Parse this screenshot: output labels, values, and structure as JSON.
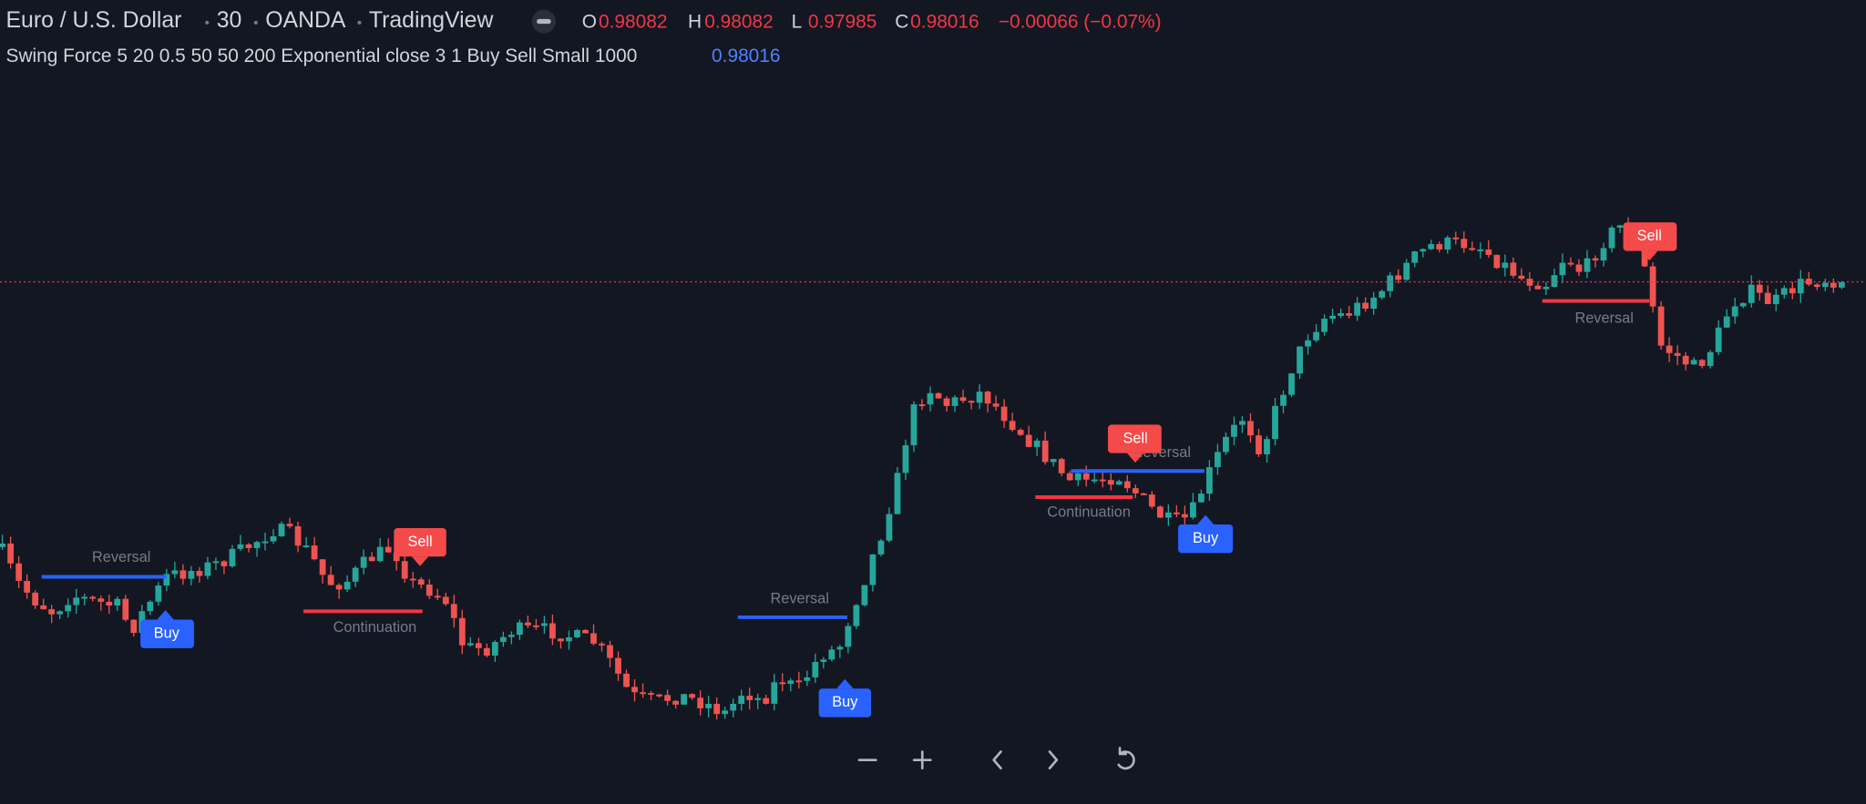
{
  "header": {
    "symbol": "Euro / U.S. Dollar",
    "interval": "30",
    "exchange": "OANDA",
    "source": "TradingView",
    "ohlc": [
      {
        "key": "O",
        "value": "0.98082"
      },
      {
        "key": "H",
        "value": "0.98082"
      },
      {
        "key": "L",
        "value": "0.97985"
      },
      {
        "key": "C",
        "value": "0.98016"
      }
    ],
    "change": "−0.00066 (−0.07%)"
  },
  "indicator": {
    "name": "Swing Force 5 20 0.5 50 50 200 Exponential close 3 1 Buy Sell Small 1000",
    "value": "0.98016"
  },
  "annotations": [
    "Reversal",
    "Continuation",
    "Reversal",
    "Continuation",
    "Reversal",
    "Reversal"
  ],
  "signals": [
    "Sell",
    "Buy",
    "Sell",
    "Buy",
    "Sell",
    "Buy"
  ]
}
